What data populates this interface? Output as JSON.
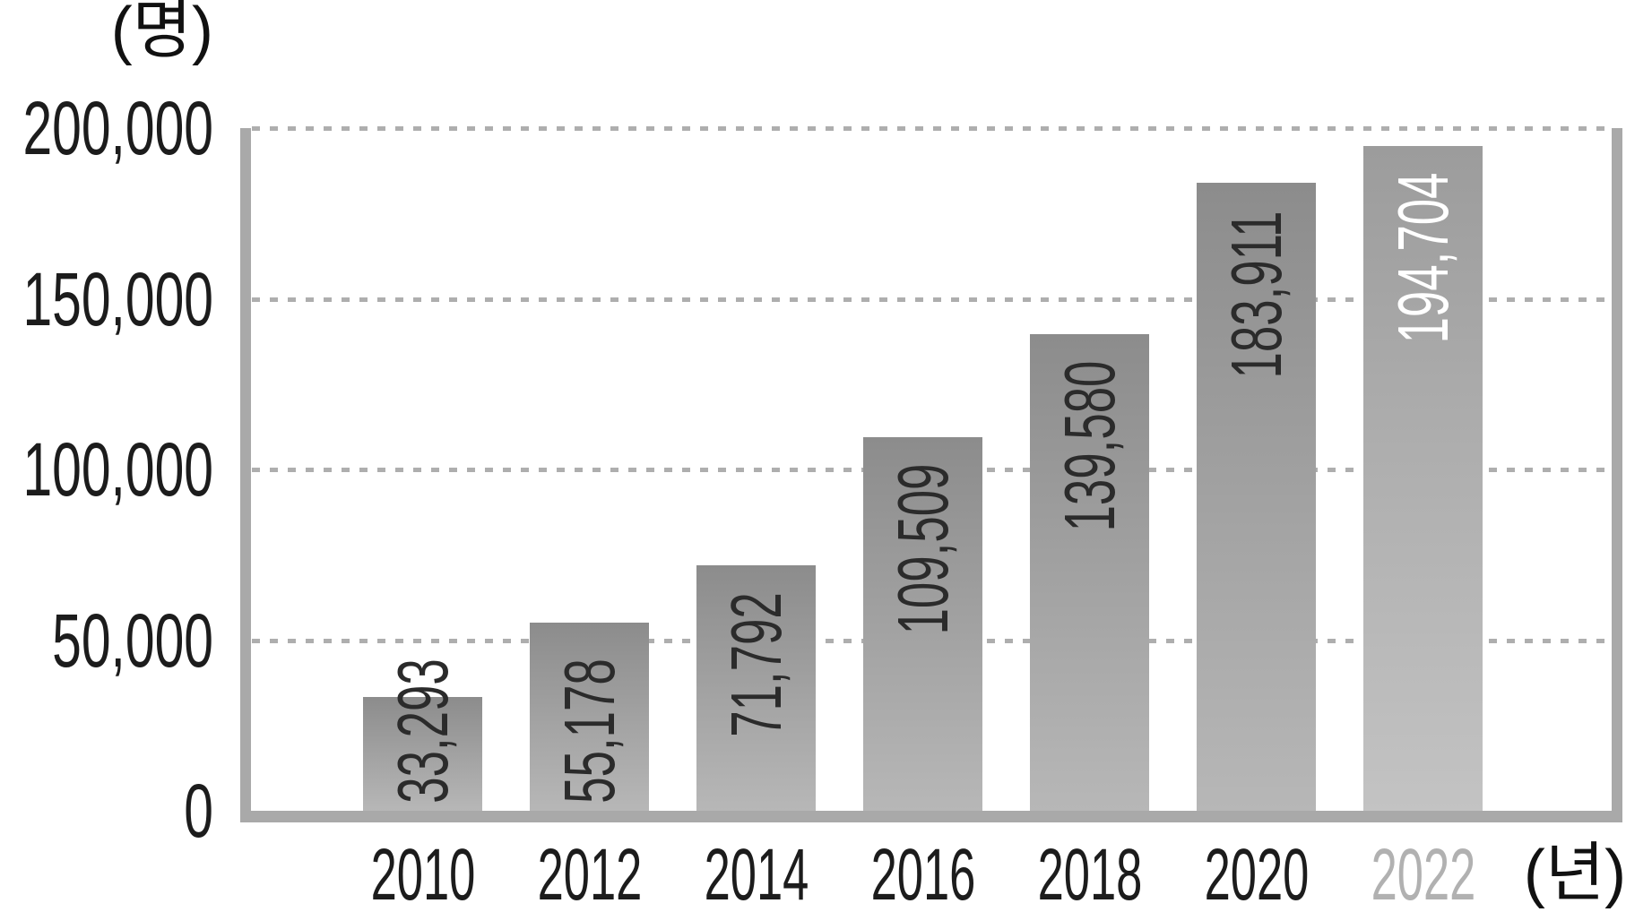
{
  "chart_data": {
    "type": "bar",
    "title": "",
    "categories": [
      "2010",
      "2012",
      "2014",
      "2016",
      "2018",
      "2020",
      "2022"
    ],
    "values": [
      33293,
      55178,
      71792,
      109509,
      139580,
      183911,
      194704
    ],
    "value_labels": [
      "33,293",
      "55,178",
      "71,792",
      "109,509",
      "139,580",
      "183,911",
      "194,704"
    ],
    "xlabel": "(년)",
    "ylabel": "(명)",
    "ylim": [
      0,
      200000
    ],
    "y_ticks": [
      0,
      50000,
      100000,
      150000,
      200000
    ],
    "y_tick_labels": [
      "0",
      "50,000",
      "100,000",
      "150,000",
      "200,000"
    ],
    "grid": "horizontal dotted lines at y ticks",
    "legend_position": "none",
    "highlighted_category": "2022",
    "highlight_note": "2022 bar is lighter with white value label and gray tick label",
    "value_label_orientation": "rotated 90deg, reads bottom to top"
  },
  "colors": {
    "background": "#ffffff",
    "axis": "#a9a9a9",
    "grid_dots": "#aeaeae",
    "bar_gradient_top": "#8c8c8c",
    "bar_gradient_bottom": "#b7b7b7",
    "bar_highlight_gradient_top": "#9c9c9c",
    "bar_highlight_gradient_bottom": "#c3c3c3",
    "tick_label": "#1c1c1c",
    "tick_label_highlight": "#b1b1b1",
    "value_label": "#2b2b2b",
    "value_label_highlight": "#ffffff"
  }
}
